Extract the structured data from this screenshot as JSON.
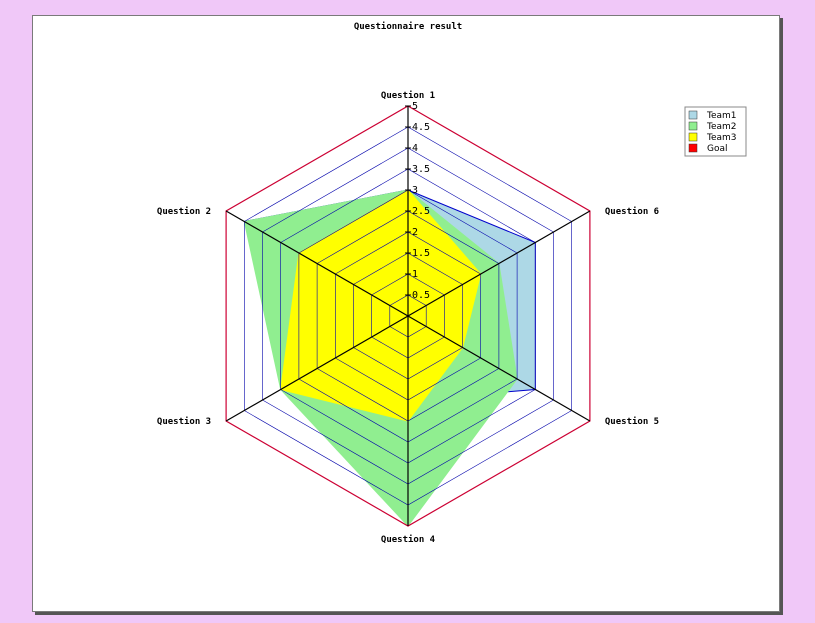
{
  "chart_data": {
    "type": "radar",
    "title": "Questionnaire result",
    "axes": [
      "Question 1",
      "Question 6",
      "Question 5",
      "Question 4",
      "Question 3",
      "Question 2"
    ],
    "scale": {
      "min": 0,
      "max": 5,
      "step": 0.5
    },
    "tick_labels": [
      "0.5",
      "1",
      "1.5",
      "2",
      "2.5",
      "3",
      "3.5",
      "4",
      "4.5",
      "5"
    ],
    "series": [
      {
        "name": "Team1",
        "values": [
          3,
          3.5,
          3.5,
          2,
          2.5,
          4.5
        ],
        "fill": "#add8e6",
        "stroke": "#0000cc"
      },
      {
        "name": "Team2",
        "values": [
          3,
          2.5,
          3,
          5,
          3.5,
          4.5
        ],
        "fill": "#90ee90",
        "stroke": "#90ee90"
      },
      {
        "name": "Team3",
        "values": [
          3,
          2,
          1.5,
          2.5,
          3.5,
          3
        ],
        "fill": "#ffff00",
        "stroke": "#ffff00"
      },
      {
        "name": "Goal",
        "values": [
          5,
          5,
          5,
          5,
          5,
          5
        ],
        "fill": "none",
        "stroke": "#cc0000"
      }
    ],
    "legend": {
      "position": "top-right",
      "items": [
        {
          "name": "Team1",
          "color": "#add8e6"
        },
        {
          "name": "Team2",
          "color": "#90ee90"
        },
        {
          "name": "Team3",
          "color": "#ffff00"
        },
        {
          "name": "Goal",
          "color": "#ff0000"
        }
      ]
    },
    "grid": true,
    "colors": {
      "grid": "#0000aa",
      "axis": "#000000",
      "goal": "#cc0033"
    }
  }
}
